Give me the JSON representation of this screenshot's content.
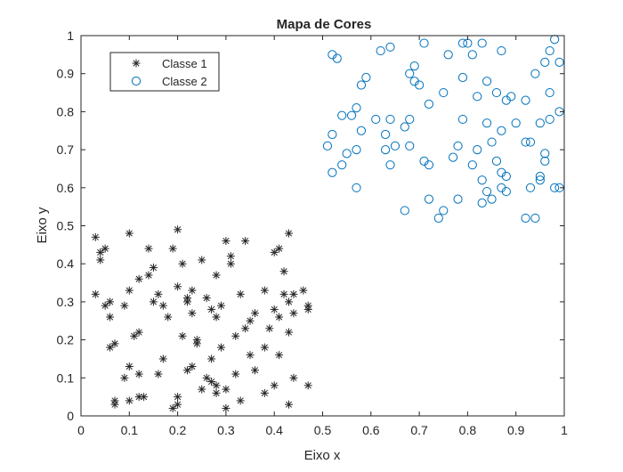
{
  "chart_data": {
    "type": "scatter",
    "title": "Mapa de Cores",
    "xlabel": "Eixo x",
    "ylabel": "Eixo y",
    "xlim": [
      0,
      1
    ],
    "ylim": [
      0,
      1
    ],
    "xticks": [
      "0",
      "0.1",
      "0.2",
      "0.3",
      "0.4",
      "0.5",
      "0.6",
      "0.7",
      "0.8",
      "0.9",
      "1"
    ],
    "yticks": [
      "0",
      "0.1",
      "0.2",
      "0.3",
      "0.4",
      "0.5",
      "0.6",
      "0.7",
      "0.8",
      "0.9",
      "1"
    ],
    "grid": false,
    "legend_position": "top-left",
    "series": [
      {
        "name": "Classe 1",
        "marker": "asterisk",
        "color": "#262626",
        "points": [
          [
            0.03,
            0.47
          ],
          [
            0.04,
            0.41
          ],
          [
            0.04,
            0.43
          ],
          [
            0.05,
            0.44
          ],
          [
            0.03,
            0.32
          ],
          [
            0.05,
            0.29
          ],
          [
            0.06,
            0.3
          ],
          [
            0.06,
            0.26
          ],
          [
            0.06,
            0.18
          ],
          [
            0.07,
            0.19
          ],
          [
            0.07,
            0.04
          ],
          [
            0.07,
            0.03
          ],
          [
            0.09,
            0.1
          ],
          [
            0.09,
            0.29
          ],
          [
            0.1,
            0.48
          ],
          [
            0.1,
            0.33
          ],
          [
            0.1,
            0.04
          ],
          [
            0.1,
            0.13
          ],
          [
            0.11,
            0.21
          ],
          [
            0.12,
            0.22
          ],
          [
            0.12,
            0.36
          ],
          [
            0.12,
            0.05
          ],
          [
            0.12,
            0.11
          ],
          [
            0.13,
            0.05
          ],
          [
            0.14,
            0.44
          ],
          [
            0.14,
            0.37
          ],
          [
            0.15,
            0.39
          ],
          [
            0.15,
            0.3
          ],
          [
            0.16,
            0.32
          ],
          [
            0.16,
            0.11
          ],
          [
            0.17,
            0.15
          ],
          [
            0.17,
            0.29
          ],
          [
            0.18,
            0.26
          ],
          [
            0.19,
            0.02
          ],
          [
            0.19,
            0.44
          ],
          [
            0.2,
            0.49
          ],
          [
            0.2,
            0.34
          ],
          [
            0.2,
            0.03
          ],
          [
            0.2,
            0.05
          ],
          [
            0.21,
            0.4
          ],
          [
            0.21,
            0.21
          ],
          [
            0.22,
            0.3
          ],
          [
            0.22,
            0.31
          ],
          [
            0.22,
            0.12
          ],
          [
            0.23,
            0.33
          ],
          [
            0.23,
            0.13
          ],
          [
            0.23,
            0.27
          ],
          [
            0.24,
            0.2
          ],
          [
            0.24,
            0.19
          ],
          [
            0.25,
            0.41
          ],
          [
            0.25,
            0.07
          ],
          [
            0.26,
            0.1
          ],
          [
            0.26,
            0.31
          ],
          [
            0.27,
            0.15
          ],
          [
            0.27,
            0.28
          ],
          [
            0.27,
            0.09
          ],
          [
            0.28,
            0.37
          ],
          [
            0.28,
            0.06
          ],
          [
            0.28,
            0.08
          ],
          [
            0.28,
            0.26
          ],
          [
            0.29,
            0.18
          ],
          [
            0.29,
            0.29
          ],
          [
            0.3,
            0.46
          ],
          [
            0.3,
            0.07
          ],
          [
            0.3,
            0.02
          ],
          [
            0.31,
            0.4
          ],
          [
            0.31,
            0.42
          ],
          [
            0.32,
            0.21
          ],
          [
            0.32,
            0.11
          ],
          [
            0.33,
            0.32
          ],
          [
            0.33,
            0.04
          ],
          [
            0.34,
            0.46
          ],
          [
            0.34,
            0.23
          ],
          [
            0.35,
            0.25
          ],
          [
            0.35,
            0.16
          ],
          [
            0.36,
            0.27
          ],
          [
            0.36,
            0.12
          ],
          [
            0.38,
            0.33
          ],
          [
            0.38,
            0.06
          ],
          [
            0.39,
            0.23
          ],
          [
            0.4,
            0.43
          ],
          [
            0.4,
            0.28
          ],
          [
            0.4,
            0.08
          ],
          [
            0.41,
            0.26
          ],
          [
            0.41,
            0.44
          ],
          [
            0.41,
            0.16
          ],
          [
            0.42,
            0.32
          ],
          [
            0.42,
            0.38
          ],
          [
            0.43,
            0.3
          ],
          [
            0.43,
            0.22
          ],
          [
            0.43,
            0.48
          ],
          [
            0.43,
            0.03
          ],
          [
            0.44,
            0.27
          ],
          [
            0.44,
            0.1
          ],
          [
            0.46,
            0.33
          ],
          [
            0.47,
            0.29
          ],
          [
            0.47,
            0.28
          ],
          [
            0.47,
            0.08
          ],
          [
            0.44,
            0.32
          ],
          [
            0.38,
            0.18
          ]
        ]
      },
      {
        "name": "Classe 2",
        "marker": "circle",
        "color": "#0072BD",
        "points": [
          [
            0.52,
            0.95
          ],
          [
            0.53,
            0.94
          ],
          [
            0.51,
            0.71
          ],
          [
            0.52,
            0.64
          ],
          [
            0.52,
            0.74
          ],
          [
            0.54,
            0.79
          ],
          [
            0.54,
            0.66
          ],
          [
            0.55,
            0.69
          ],
          [
            0.56,
            0.79
          ],
          [
            0.57,
            0.7
          ],
          [
            0.57,
            0.81
          ],
          [
            0.57,
            0.6
          ],
          [
            0.58,
            0.75
          ],
          [
            0.58,
            0.87
          ],
          [
            0.59,
            0.89
          ],
          [
            0.61,
            0.78
          ],
          [
            0.62,
            0.96
          ],
          [
            0.63,
            0.74
          ],
          [
            0.63,
            0.7
          ],
          [
            0.64,
            0.97
          ],
          [
            0.64,
            0.66
          ],
          [
            0.64,
            0.78
          ],
          [
            0.65,
            0.71
          ],
          [
            0.67,
            0.54
          ],
          [
            0.67,
            0.76
          ],
          [
            0.68,
            0.9
          ],
          [
            0.68,
            0.78
          ],
          [
            0.68,
            0.71
          ],
          [
            0.69,
            0.88
          ],
          [
            0.69,
            0.92
          ],
          [
            0.7,
            0.87
          ],
          [
            0.71,
            0.98
          ],
          [
            0.71,
            0.67
          ],
          [
            0.72,
            0.82
          ],
          [
            0.72,
            0.66
          ],
          [
            0.72,
            0.57
          ],
          [
            0.74,
            0.52
          ],
          [
            0.75,
            0.54
          ],
          [
            0.75,
            0.85
          ],
          [
            0.76,
            0.95
          ],
          [
            0.77,
            0.68
          ],
          [
            0.78,
            0.71
          ],
          [
            0.78,
            0.57
          ],
          [
            0.79,
            0.98
          ],
          [
            0.79,
            0.89
          ],
          [
            0.79,
            0.78
          ],
          [
            0.8,
            0.98
          ],
          [
            0.81,
            0.66
          ],
          [
            0.81,
            0.95
          ],
          [
            0.82,
            0.84
          ],
          [
            0.82,
            0.7
          ],
          [
            0.83,
            0.62
          ],
          [
            0.83,
            0.98
          ],
          [
            0.83,
            0.56
          ],
          [
            0.84,
            0.88
          ],
          [
            0.84,
            0.77
          ],
          [
            0.84,
            0.59
          ],
          [
            0.85,
            0.57
          ],
          [
            0.85,
            0.72
          ],
          [
            0.86,
            0.85
          ],
          [
            0.86,
            0.67
          ],
          [
            0.87,
            0.64
          ],
          [
            0.87,
            0.75
          ],
          [
            0.87,
            0.96
          ],
          [
            0.87,
            0.6
          ],
          [
            0.88,
            0.59
          ],
          [
            0.88,
            0.83
          ],
          [
            0.88,
            0.63
          ],
          [
            0.89,
            0.84
          ],
          [
            0.9,
            0.77
          ],
          [
            0.92,
            0.72
          ],
          [
            0.92,
            0.83
          ],
          [
            0.92,
            0.52
          ],
          [
            0.93,
            0.72
          ],
          [
            0.93,
            0.6
          ],
          [
            0.94,
            0.52
          ],
          [
            0.94,
            0.9
          ],
          [
            0.95,
            0.77
          ],
          [
            0.95,
            0.62
          ],
          [
            0.95,
            0.63
          ],
          [
            0.96,
            0.69
          ],
          [
            0.96,
            0.93
          ],
          [
            0.96,
            0.67
          ],
          [
            0.97,
            0.96
          ],
          [
            0.97,
            0.85
          ],
          [
            0.97,
            0.78
          ],
          [
            0.98,
            0.6
          ],
          [
            0.98,
            0.99
          ],
          [
            0.99,
            0.6
          ],
          [
            0.99,
            0.93
          ],
          [
            0.99,
            0.8
          ]
        ]
      }
    ]
  }
}
